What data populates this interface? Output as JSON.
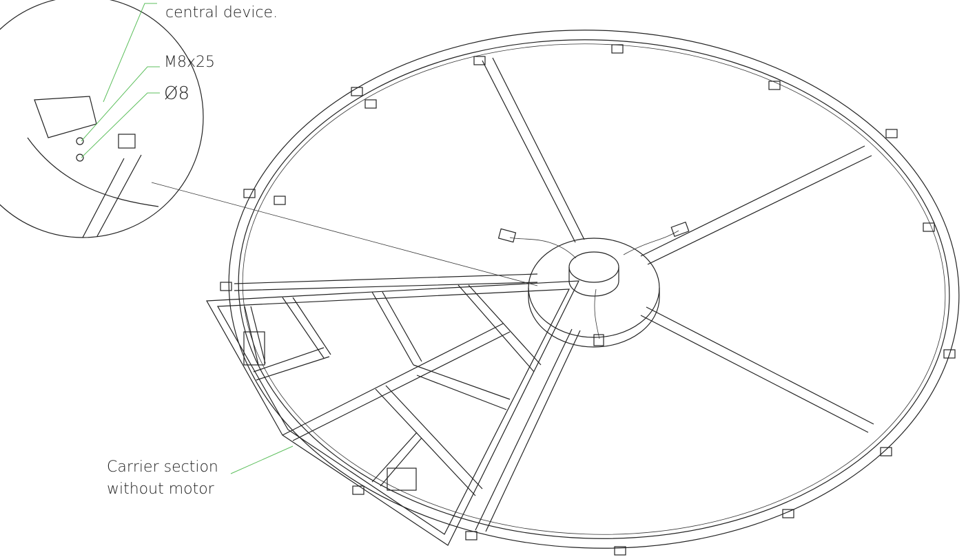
{
  "callouts": {
    "central_device": "central device.",
    "bolt": "M8x25",
    "washer": "Ø8",
    "carrier": [
      "Carrier section",
      "without motor"
    ]
  }
}
